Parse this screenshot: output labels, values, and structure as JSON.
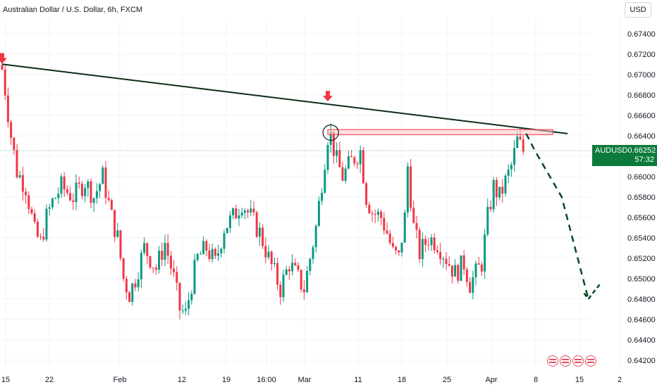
{
  "header": {
    "title": "Australian Dollar / U.S. Dollar, 6h, FXCM",
    "currency_button": "USD"
  },
  "price_label": {
    "symbol": "AUDUSD",
    "price": "0.66252",
    "countdown": "57:32"
  },
  "colors": {
    "up": "#089981",
    "down": "#f23645",
    "trendline": "#0a2e14",
    "zone_fill": "#f7c6c9",
    "zone_border": "#f23645",
    "arrow": "#f23645",
    "projection": "#0a4a20",
    "price_label_bg": "#0b7a3b"
  },
  "icons": [
    "currency-event-icon",
    "currency-event-icon",
    "currency-event-icon",
    "currency-event-icon"
  ],
  "chart_data": {
    "type": "candlestick",
    "title": "Australian Dollar / U.S. Dollar, 6h, FXCM",
    "ylim": [
      0.6411,
      0.6755
    ],
    "yticks": [
      "0.67400",
      "0.67200",
      "0.67000",
      "0.66800",
      "0.66600",
      "0.66400",
      "0.66200",
      "0.66000",
      "0.65800",
      "0.65600",
      "0.65400",
      "0.65200",
      "0.65000",
      "0.64800",
      "0.64600",
      "0.64400",
      "0.64200"
    ],
    "xticks": [
      "15",
      "22",
      "Feb",
      "12",
      "19",
      "16:00",
      "Mar",
      "11",
      "18",
      "25",
      "Apr",
      "8",
      "15",
      "2"
    ],
    "price_path": [
      [
        0,
        0.6705
      ],
      [
        1,
        0.6685
      ],
      [
        3,
        0.664
      ],
      [
        5,
        0.6605
      ],
      [
        8,
        0.659
      ],
      [
        11,
        0.6545
      ],
      [
        13,
        0.6535
      ],
      [
        15,
        0.656
      ],
      [
        17,
        0.6575
      ],
      [
        20,
        0.659
      ],
      [
        24,
        0.658
      ],
      [
        28,
        0.6595
      ],
      [
        31,
        0.658
      ],
      [
        34,
        0.66
      ],
      [
        37,
        0.656
      ],
      [
        39,
        0.654
      ],
      [
        41,
        0.65
      ],
      [
        43,
        0.6485
      ],
      [
        45,
        0.65
      ],
      [
        48,
        0.653
      ],
      [
        52,
        0.651
      ],
      [
        55,
        0.6535
      ],
      [
        58,
        0.65
      ],
      [
        60,
        0.647
      ],
      [
        62,
        0.6465
      ],
      [
        64,
        0.6495
      ],
      [
        66,
        0.652
      ],
      [
        69,
        0.653
      ],
      [
        72,
        0.6515
      ],
      [
        75,
        0.655
      ],
      [
        78,
        0.656
      ],
      [
        81,
        0.6575
      ],
      [
        84,
        0.656
      ],
      [
        87,
        0.6545
      ],
      [
        90,
        0.652
      ],
      [
        92,
        0.6505
      ],
      [
        94,
        0.649
      ],
      [
        97,
        0.6515
      ],
      [
        100,
        0.65
      ],
      [
        102,
        0.649
      ],
      [
        104,
        0.652
      ],
      [
        106,
        0.655
      ],
      [
        108,
        0.6595
      ],
      [
        110,
        0.664
      ],
      [
        111,
        0.664
      ],
      [
        113,
        0.6615
      ],
      [
        115,
        0.66
      ],
      [
        118,
        0.6615
      ],
      [
        121,
        0.6625
      ],
      [
        123,
        0.658
      ],
      [
        125,
        0.6565
      ],
      [
        128,
        0.656
      ],
      [
        130,
        0.6545
      ],
      [
        132,
        0.6525
      ],
      [
        134,
        0.652
      ],
      [
        136,
        0.656
      ],
      [
        137,
        0.661
      ],
      [
        139,
        0.655
      ],
      [
        141,
        0.6525
      ],
      [
        144,
        0.654
      ],
      [
        147,
        0.6535
      ],
      [
        150,
        0.652
      ],
      [
        153,
        0.6505
      ],
      [
        156,
        0.6515
      ],
      [
        158,
        0.6495
      ],
      [
        160,
        0.6505
      ],
      [
        162,
        0.6515
      ],
      [
        164,
        0.656
      ],
      [
        166,
        0.659
      ],
      [
        168,
        0.658
      ],
      [
        170,
        0.6595
      ],
      [
        172,
        0.661
      ],
      [
        174,
        0.6635
      ],
      [
        176,
        0.6625
      ]
    ],
    "trendline": [
      [
        0,
        0.671
      ],
      [
        191,
        0.6642
      ]
    ],
    "zone": {
      "x": [
        110,
        186
      ],
      "y": [
        0.6641,
        0.6646
      ]
    },
    "circle_marker": [
      111,
      0.6643
    ],
    "arrows": [
      [
        0,
        0.6714
      ],
      [
        110,
        0.6677
      ]
    ],
    "projection": [
      [
        177,
        0.6642
      ],
      [
        180,
        0.6625
      ],
      [
        189,
        0.658
      ],
      [
        198,
        0.648
      ],
      [
        202,
        0.6488
      ]
    ],
    "last_price": 0.66252
  }
}
